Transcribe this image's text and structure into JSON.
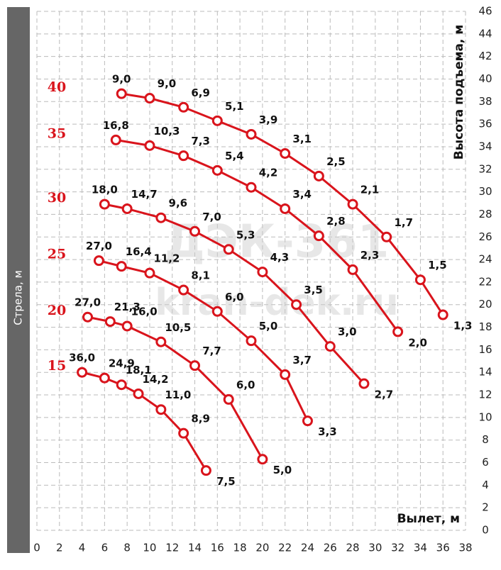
{
  "chart_data": {
    "type": "line",
    "side_label": "Стрела, м",
    "x_label": "Вылет, м",
    "y_label": "Высота подъема, м",
    "watermark": [
      "ДЭК-361",
      "kran-dek.ru"
    ],
    "xlim": [
      0,
      38
    ],
    "xticks": [
      0,
      2,
      4,
      6,
      8,
      10,
      12,
      14,
      16,
      18,
      20,
      22,
      24,
      26,
      28,
      30,
      32,
      34,
      36,
      38
    ],
    "ylim": [
      0,
      46
    ],
    "yticks": [
      0,
      2,
      4,
      6,
      8,
      10,
      12,
      14,
      16,
      18,
      20,
      22,
      24,
      26,
      28,
      30,
      32,
      34,
      36,
      38,
      40,
      42,
      44,
      46
    ],
    "grid": true,
    "series": [
      {
        "name": "40",
        "color": "#d9141c",
        "x": [
          7.5,
          10,
          13,
          16,
          19,
          22,
          25,
          28,
          31,
          34,
          36
        ],
        "values": [
          38.7,
          38.3,
          37.5,
          36.3,
          35.1,
          33.4,
          31.4,
          28.9,
          26.0,
          22.2,
          19.1
        ],
        "labels": [
          "9,0",
          "9,0",
          "6,9",
          "5,1",
          "3,9",
          "3,1",
          "2,5",
          "2,1",
          "1,7",
          "1,5",
          "1,3"
        ]
      },
      {
        "name": "35",
        "color": "#d9141c",
        "x": [
          7,
          10,
          13,
          16,
          19,
          22,
          25,
          28,
          32
        ],
        "values": [
          34.6,
          34.1,
          33.2,
          31.9,
          30.4,
          28.5,
          26.1,
          23.1,
          17.6
        ],
        "labels": [
          "16,8",
          "10,3",
          "7,3",
          "5,4",
          "4,2",
          "3,4",
          "2,8",
          "2,3",
          "2,0"
        ]
      },
      {
        "name": "30",
        "color": "#d9141c",
        "x": [
          6,
          8,
          11,
          14,
          17,
          20,
          23,
          26,
          29
        ],
        "values": [
          28.9,
          28.5,
          27.7,
          26.5,
          24.9,
          22.9,
          20.0,
          16.3,
          13.0
        ],
        "labels": [
          "18,0",
          "14,7",
          "9,6",
          "7,0",
          "5,3",
          "4,3",
          "3,5",
          "3,0",
          "2,7"
        ]
      },
      {
        "name": "25",
        "color": "#d9141c",
        "x": [
          5.5,
          7.5,
          10,
          13,
          16,
          19,
          22,
          24
        ],
        "values": [
          23.9,
          23.4,
          22.8,
          21.3,
          19.4,
          16.8,
          13.8,
          9.7
        ],
        "labels": [
          "27,0",
          "16,4",
          "11,2",
          "8,1",
          "6,0",
          "5,0",
          "3,7",
          "3,3"
        ]
      },
      {
        "name": "20",
        "color": "#d9141c",
        "x": [
          4.5,
          6.5,
          8,
          11,
          14,
          17,
          20
        ],
        "values": [
          18.9,
          18.5,
          18.1,
          16.7,
          14.6,
          11.6,
          6.3
        ],
        "labels": [
          "27,0",
          "21,3",
          "16,0",
          "10,5",
          "7,7",
          "6,0",
          "5,0"
        ]
      },
      {
        "name": "15",
        "color": "#d9141c",
        "x": [
          4,
          6,
          7.5,
          9,
          11,
          13,
          15
        ],
        "values": [
          14.0,
          13.5,
          12.9,
          12.1,
          10.7,
          8.6,
          5.3
        ],
        "labels": [
          "36,0",
          "24,9",
          "18,1",
          "14,2",
          "11,0",
          "8,9",
          "7,5"
        ]
      }
    ]
  }
}
